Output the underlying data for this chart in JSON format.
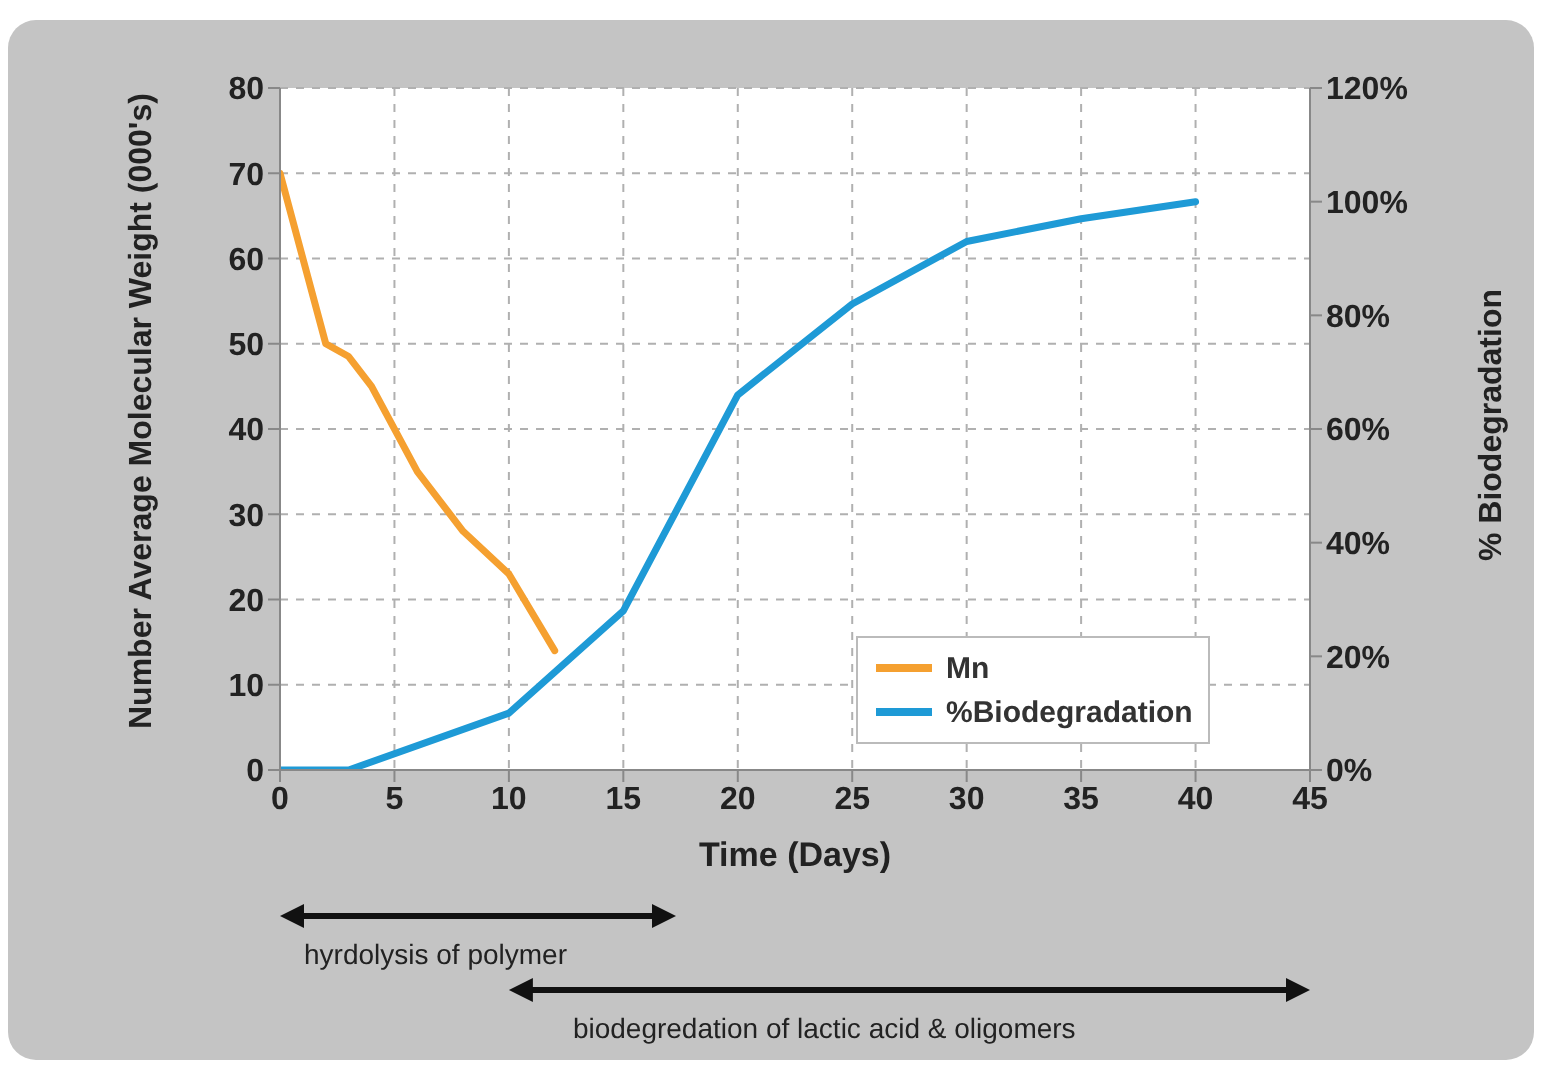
{
  "chart_data": {
    "type": "line",
    "xlabel": "Time (Days)",
    "ylabel": "Number Average Molecular Weight (000's)",
    "y2label": "% Biodegradation",
    "xlim": [
      0,
      45
    ],
    "xticks": [
      0,
      5,
      10,
      15,
      20,
      25,
      30,
      35,
      40,
      45
    ],
    "ylim": [
      0,
      80
    ],
    "yticks": [
      0,
      10,
      20,
      30,
      40,
      50,
      60,
      70,
      80
    ],
    "y2lim": [
      0,
      120
    ],
    "y2ticks": [
      {
        "value": 0,
        "label": "0%"
      },
      {
        "value": 20,
        "label": "20%"
      },
      {
        "value": 40,
        "label": "40%"
      },
      {
        "value": 60,
        "label": "60%"
      },
      {
        "value": 80,
        "label": "80%"
      },
      {
        "value": 100,
        "label": "100%"
      },
      {
        "value": 120,
        "label": "120%"
      }
    ],
    "series": [
      {
        "name": "Mn",
        "color": "#f5a030",
        "x": [
          0,
          2,
          3,
          4,
          6,
          8,
          10,
          12
        ],
        "values": [
          70,
          50,
          48.5,
          45,
          35,
          28,
          23,
          14
        ]
      },
      {
        "name": "%Biodegradation",
        "color": "#1e9ad6",
        "axis": "y2",
        "x": [
          0,
          3,
          10,
          15,
          20,
          25,
          30,
          35,
          40
        ],
        "values": [
          0,
          0,
          10,
          28,
          66,
          82,
          93,
          97,
          100
        ]
      }
    ],
    "grid": true,
    "legend": "bottom right",
    "marker": "none",
    "line_style": "solid",
    "annotations": [
      {
        "text": "hyrdolysis of polymer"
      },
      {
        "text": "biodegredation of lactic acid & oligomers"
      }
    ]
  }
}
